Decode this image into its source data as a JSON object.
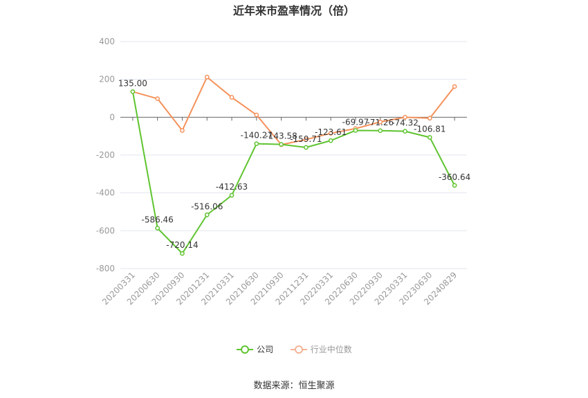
{
  "chart_data": {
    "type": "line",
    "title": "近年来市盈率情况（倍）",
    "categories": [
      "20200331",
      "20200630",
      "20200930",
      "20201231",
      "20210331",
      "20210630",
      "20210930",
      "20211231",
      "20220331",
      "20220630",
      "20220930",
      "20230331",
      "20230630",
      "20240829"
    ],
    "ylim": [
      -800,
      400
    ],
    "yticks": [
      400,
      200,
      0,
      -200,
      -400,
      -600,
      -800
    ],
    "grid": true,
    "legend_position": "bottom",
    "series": [
      {
        "name": "公司",
        "color": "#5ec42f",
        "values": [
          135.0,
          -586.46,
          -720.14,
          -516.06,
          -412.63,
          -140.27,
          -143.58,
          -159.71,
          -123.61,
          -69.97,
          -71.26,
          -74.32,
          -106.81,
          -360.64
        ],
        "labels": [
          "135.00",
          "-586.46",
          "-720.14",
          "-516.06",
          "-412.63",
          "-140.27",
          "-143.58",
          "-159.71",
          "-123.61",
          "-69.97",
          "-71.26",
          "-74.32",
          "-106.81",
          "-360.64"
        ]
      },
      {
        "name": "行业中位数",
        "color": "#f5915a",
        "values": [
          135,
          98,
          -70,
          212,
          105,
          12,
          -145,
          -118,
          -85,
          -60,
          -25,
          0,
          -5,
          162
        ]
      }
    ]
  },
  "source": "数据来源：恒生聚源"
}
